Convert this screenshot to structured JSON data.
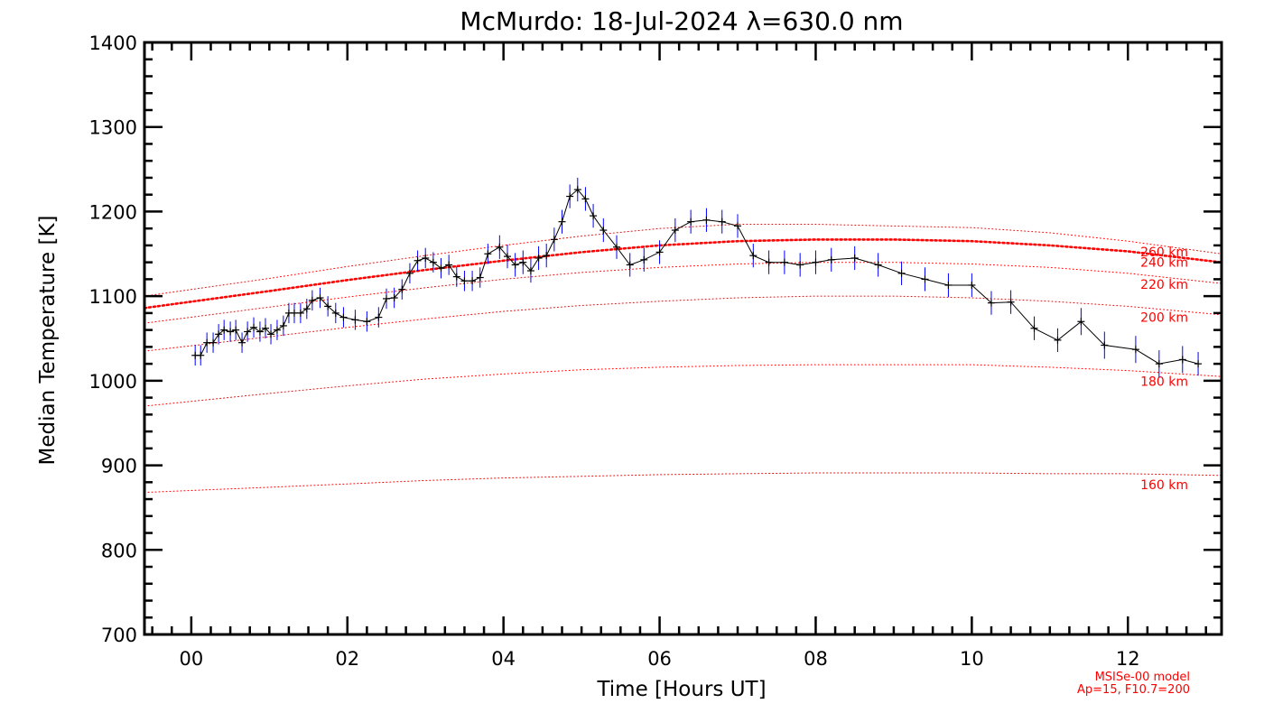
{
  "chart_data": {
    "type": "line",
    "title": "McMurdo: 18-Jul-2024 λ=630.0 nm",
    "xlabel": "Time [Hours UT]",
    "ylabel": "Median Temperature [K]",
    "xlim": [
      -0.6,
      13.2
    ],
    "ylim": [
      700,
      1400
    ],
    "xticks": [
      "00",
      "02",
      "04",
      "06",
      "08",
      "10",
      "12"
    ],
    "yticks": [
      "700",
      "800",
      "900",
      "1000",
      "1100",
      "1200",
      "1300",
      "1400"
    ],
    "x_tick_values": [
      0,
      2,
      4,
      6,
      8,
      10,
      12
    ],
    "y_tick_values": [
      700,
      800,
      900,
      1000,
      1100,
      1200,
      1300,
      1400
    ],
    "grid": false,
    "colors": {
      "data_line": "#000000",
      "error_bar": "#0000ff",
      "model": "#ff0000"
    },
    "series": [
      {
        "name": "Median Temperature",
        "x": [
          0.05,
          0.12,
          0.2,
          0.28,
          0.35,
          0.42,
          0.5,
          0.57,
          0.65,
          0.72,
          0.8,
          0.88,
          0.95,
          1.02,
          1.1,
          1.18,
          1.25,
          1.32,
          1.4,
          1.48,
          1.55,
          1.65,
          1.75,
          1.85,
          1.95,
          2.1,
          2.25,
          2.4,
          2.5,
          2.6,
          2.7,
          2.8,
          2.9,
          3.0,
          3.1,
          3.2,
          3.3,
          3.4,
          3.5,
          3.6,
          3.7,
          3.8,
          3.95,
          4.05,
          4.15,
          4.25,
          4.35,
          4.45,
          4.55,
          4.65,
          4.75,
          4.85,
          4.95,
          5.05,
          5.15,
          5.28,
          5.45,
          5.62,
          5.8,
          6.0,
          6.2,
          6.4,
          6.6,
          6.8,
          7.0,
          7.2,
          7.4,
          7.6,
          7.8,
          8.0,
          8.2,
          8.5,
          8.8,
          9.1,
          9.4,
          9.7,
          10.0,
          10.25,
          10.5,
          10.8,
          11.1,
          11.4,
          11.7,
          12.1,
          12.4,
          12.7,
          12.9
        ],
        "y": [
          1030,
          1030,
          1045,
          1045,
          1055,
          1060,
          1058,
          1060,
          1045,
          1058,
          1063,
          1058,
          1062,
          1055,
          1060,
          1065,
          1080,
          1080,
          1080,
          1085,
          1095,
          1098,
          1088,
          1080,
          1075,
          1072,
          1070,
          1075,
          1097,
          1098,
          1108,
          1127,
          1142,
          1145,
          1140,
          1133,
          1137,
          1123,
          1118,
          1118,
          1122,
          1150,
          1158,
          1147,
          1137,
          1140,
          1130,
          1145,
          1148,
          1167,
          1188,
          1218,
          1226,
          1215,
          1195,
          1178,
          1158,
          1137,
          1143,
          1152,
          1178,
          1188,
          1190,
          1188,
          1183,
          1148,
          1140,
          1140,
          1137,
          1140,
          1143,
          1145,
          1137,
          1127,
          1120,
          1113,
          1113,
          1092,
          1093,
          1062,
          1048,
          1070,
          1042,
          1037,
          1020,
          1025,
          1020
        ],
        "error": [
          12,
          12,
          12,
          12,
          12,
          12,
          12,
          12,
          12,
          12,
          12,
          12,
          12,
          12,
          12,
          12,
          12,
          12,
          12,
          12,
          12,
          12,
          12,
          12,
          12,
          12,
          12,
          12,
          12,
          12,
          12,
          12,
          12,
          12,
          12,
          12,
          12,
          12,
          12,
          12,
          12,
          12,
          14,
          14,
          14,
          14,
          14,
          14,
          14,
          14,
          14,
          14,
          14,
          14,
          14,
          14,
          14,
          14,
          14,
          14,
          14,
          14,
          14,
          14,
          14,
          14,
          14,
          14,
          14,
          14,
          14,
          14,
          14,
          14,
          14,
          14,
          14,
          14,
          14,
          14,
          14,
          16,
          16,
          16,
          16,
          16,
          14
        ]
      }
    ],
    "model_curves": [
      {
        "label": "160 km",
        "x": [
          -0.6,
          1.0,
          2.0,
          3.0,
          4.0,
          5.0,
          6.0,
          7.0,
          8.0,
          9.0,
          10.0,
          11.0,
          12.0,
          13.2
        ],
        "y": [
          868,
          874,
          878,
          882,
          885,
          887,
          889,
          890,
          891,
          891,
          891,
          890,
          890,
          888
        ],
        "style": "dotted"
      },
      {
        "label": "180 km",
        "x": [
          -0.6,
          1.0,
          2.0,
          3.0,
          4.0,
          5.0,
          6.0,
          7.0,
          8.0,
          9.0,
          10.0,
          11.0,
          12.0,
          13.2
        ],
        "y": [
          970,
          985,
          994,
          1002,
          1008,
          1013,
          1016,
          1018,
          1019,
          1019,
          1019,
          1016,
          1012,
          1005
        ],
        "style": "dotted"
      },
      {
        "label": "200 km",
        "x": [
          -0.6,
          1.0,
          2.0,
          3.0,
          4.0,
          5.0,
          6.0,
          7.0,
          8.0,
          9.0,
          10.0,
          11.0,
          12.0,
          13.2
        ],
        "y": [
          1035,
          1052,
          1063,
          1073,
          1082,
          1089,
          1094,
          1098,
          1100,
          1100,
          1098,
          1094,
          1088,
          1078
        ],
        "style": "dotted"
      },
      {
        "label": "220 km",
        "x": [
          -0.6,
          1.0,
          2.0,
          3.0,
          4.0,
          5.0,
          6.0,
          7.0,
          8.0,
          9.0,
          10.0,
          11.0,
          12.0,
          13.2
        ],
        "y": [
          1068,
          1087,
          1099,
          1110,
          1120,
          1128,
          1134,
          1138,
          1140,
          1140,
          1138,
          1134,
          1127,
          1115
        ],
        "style": "dotted"
      },
      {
        "label": "240 km",
        "x": [
          -0.6,
          1.0,
          2.0,
          3.0,
          4.0,
          5.0,
          6.0,
          7.0,
          8.0,
          9.0,
          10.0,
          11.0,
          12.0,
          13.2
        ],
        "y": [
          1086,
          1106,
          1119,
          1131,
          1142,
          1152,
          1160,
          1165,
          1167,
          1167,
          1165,
          1160,
          1153,
          1140
        ],
        "style": "dotted-bold"
      },
      {
        "label": "260 km",
        "x": [
          -0.6,
          1.0,
          2.0,
          3.0,
          4.0,
          5.0,
          6.0,
          7.0,
          8.0,
          9.0,
          10.0,
          11.0,
          12.0,
          13.2
        ],
        "y": [
          1100,
          1121,
          1135,
          1148,
          1160,
          1171,
          1180,
          1185,
          1185,
          1183,
          1181,
          1175,
          1165,
          1150
        ],
        "style": "dotted"
      }
    ],
    "annotations": [
      "MSISe-00 model",
      "Ap=15, F10.7=200"
    ]
  }
}
